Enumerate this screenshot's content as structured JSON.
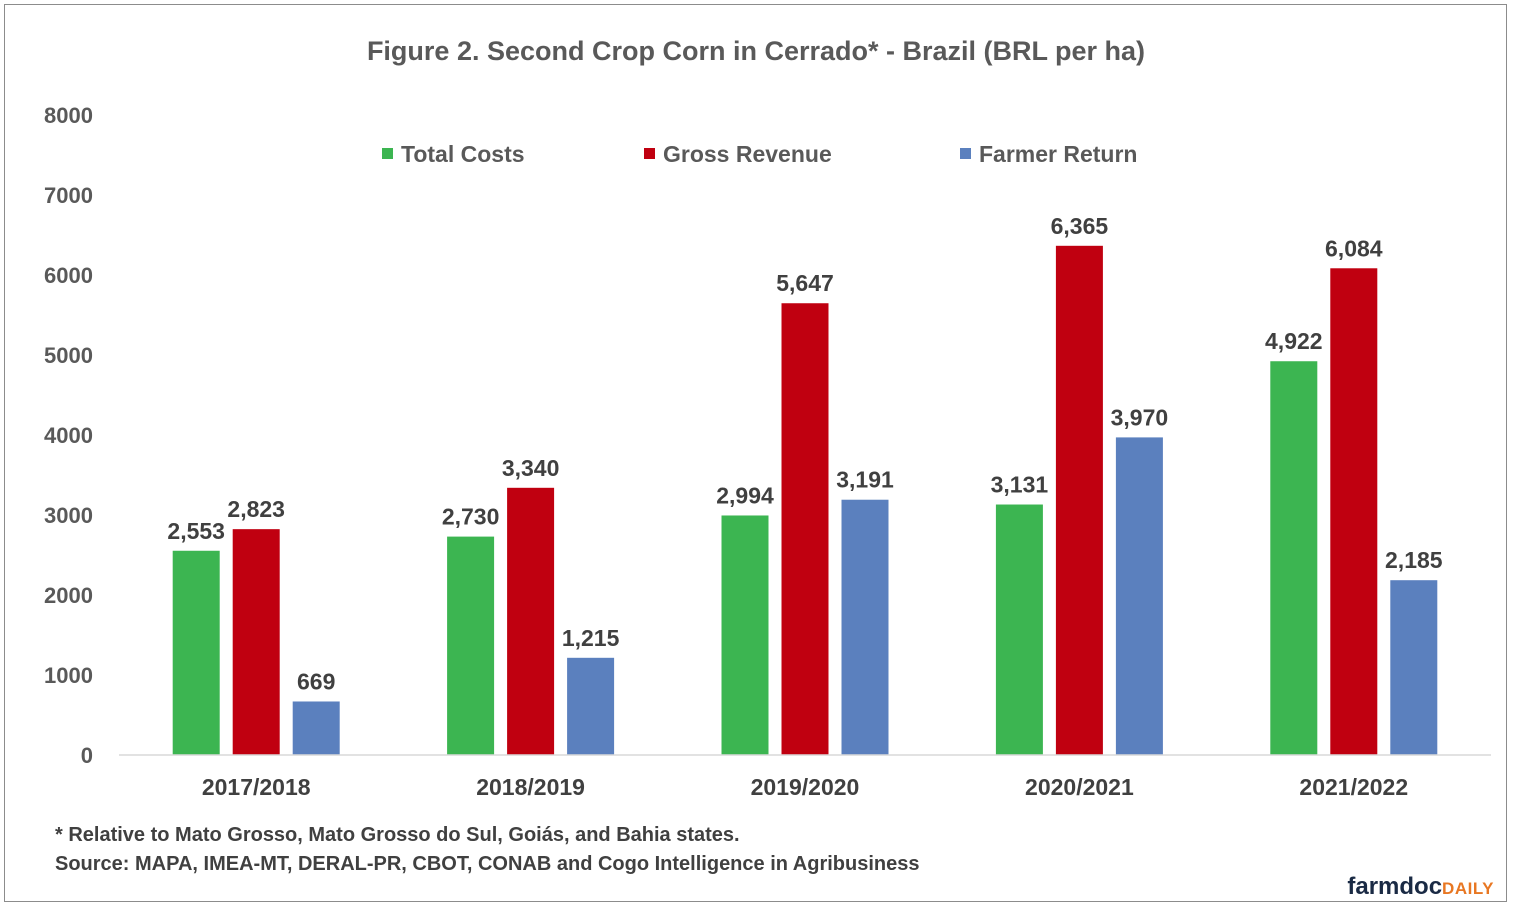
{
  "chart_data": {
    "type": "bar",
    "title": "Figure 2. Second Crop Corn in Cerrado* - Brazil (BRL per ha)",
    "categories": [
      "2017/2018",
      "2018/2019",
      "2019/2020",
      "2020/2021",
      "2021/2022"
    ],
    "series": [
      {
        "name": "Total Costs",
        "color": "#3cb551",
        "values": [
          2553,
          2730,
          2994,
          3131,
          4922
        ],
        "labels": [
          "2,553",
          "2,730",
          "2,994",
          "3,131",
          "4,922"
        ]
      },
      {
        "name": "Gross Revenue",
        "color": "#c00010",
        "values": [
          2823,
          3340,
          5647,
          6365,
          6084
        ],
        "labels": [
          "2,823",
          "3,340",
          "5,647",
          "6,365",
          "6,084"
        ]
      },
      {
        "name": "Farmer Return",
        "color": "#5b80be",
        "values": [
          669,
          1215,
          3191,
          3970,
          2185
        ],
        "labels": [
          "669",
          "1,215",
          "3,191",
          "3,970",
          "2,185"
        ]
      }
    ],
    "ylim": [
      0,
      8000
    ],
    "yticks": [
      "0",
      "1000",
      "2000",
      "3000",
      "4000",
      "5000",
      "6000",
      "7000",
      "8000"
    ],
    "grid": false,
    "legend_position": "top"
  },
  "footnote": "* Relative to Mato Grosso, Mato Grosso do Sul, Goiás, and Bahia states.",
  "source": "Source: MAPA, IMEA-MT,  DERAL-PR,  CBOT, CONAB  and Cogo Intelligence in Agribusiness",
  "brand": {
    "part1": "farmdoc",
    "part2": "DAILY",
    "color1": "#1a2a44",
    "color2": "#e87722"
  }
}
